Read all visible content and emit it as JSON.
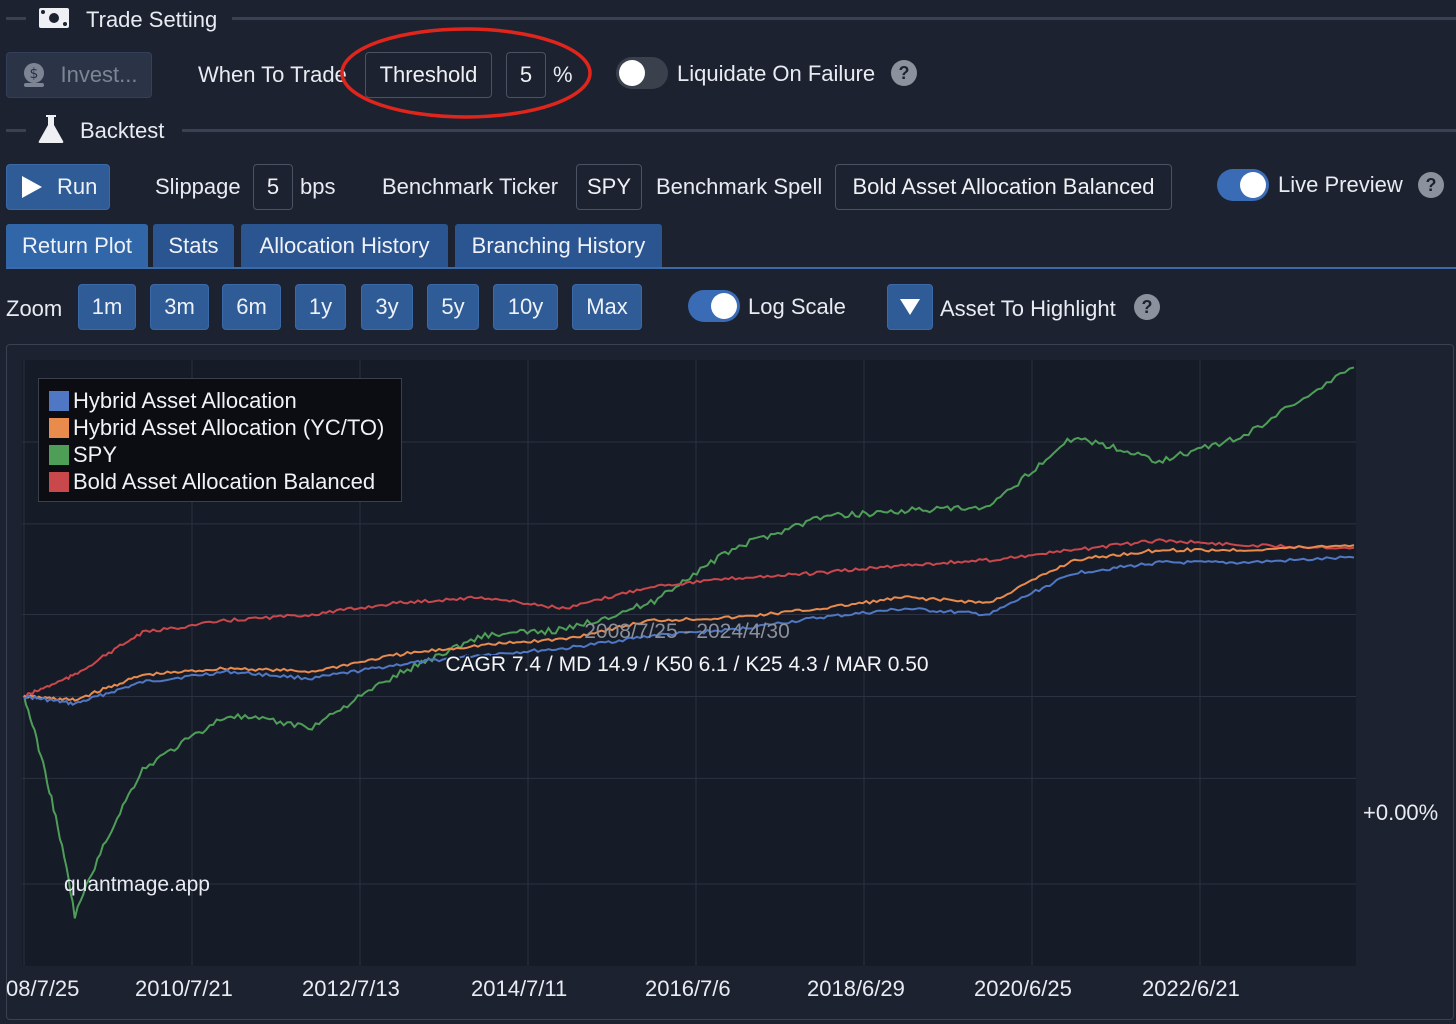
{
  "trade_setting": {
    "title": "Trade Setting",
    "invest_label": "Invest...",
    "when_to_trade_label": "When To Trade",
    "when_to_trade_value": "Threshold",
    "threshold_value": "5",
    "threshold_unit": "%",
    "liquidate_label": "Liquidate On Failure",
    "liquidate_on": false
  },
  "backtest": {
    "title": "Backtest",
    "run_label": "Run",
    "slippage_label": "Slippage",
    "slippage_value": "5",
    "slippage_unit": "bps",
    "benchmark_ticker_label": "Benchmark Ticker",
    "benchmark_ticker_value": "SPY",
    "benchmark_spell_label": "Benchmark Spell",
    "benchmark_spell_value": "Bold Asset Allocation Balanced",
    "live_preview_label": "Live Preview",
    "live_preview_on": true
  },
  "tabs": [
    "Return Plot",
    "Stats",
    "Allocation History",
    "Branching History"
  ],
  "zoom": {
    "label": "Zoom",
    "options": [
      "1m",
      "3m",
      "6m",
      "1y",
      "3y",
      "5y",
      "10y",
      "Max"
    ],
    "log_scale_label": "Log Scale",
    "log_scale_on": true,
    "asset_highlight_label": "Asset To Highlight"
  },
  "help_glyph": "?",
  "colors": {
    "background": "#1d2230",
    "accent": "#2f5c96",
    "plot_background": "#161b28",
    "annotation_circle": "#e0261c"
  },
  "chart_data": {
    "type": "line",
    "log_scale": true,
    "date_range": "2008/7/25 - 2024/4/30",
    "metrics": "CAGR 7.4 / MD 14.9 / K50 6.1 / K25 4.3 / MAR 0.50",
    "watermark": "quantmage.app",
    "reference_label": "+0.00%",
    "legend_position": "top-left",
    "grid": true,
    "x_tick_labels": [
      "08/7/25",
      "2010/7/21",
      "2012/7/13",
      "2014/7/11",
      "2016/7/6",
      "2018/6/29",
      "2020/6/25",
      "2022/6/21"
    ],
    "x": [
      2008.6,
      2009.2,
      2010.0,
      2011.0,
      2012.0,
      2013.0,
      2014.0,
      2015.0,
      2016.0,
      2017.0,
      2018.0,
      2019.0,
      2020.0,
      2021.0,
      2022.0,
      2023.0,
      2024.3
    ],
    "series": [
      {
        "name": "Hybrid Asset Allocation",
        "color": "#4f77c4",
        "values": [
          0,
          -2,
          4,
          7,
          5,
          9,
          12,
          14,
          18,
          20,
          24,
          27,
          25,
          40,
          44,
          44,
          46
        ]
      },
      {
        "name": "Hybrid Asset Allocation (YC/TO)",
        "color": "#e98b4c",
        "values": [
          0,
          -1,
          6,
          8,
          7,
          12,
          15,
          17,
          23,
          24,
          27,
          31,
          29,
          45,
          49,
          49,
          51
        ]
      },
      {
        "name": "SPY",
        "color": "#4f9e58",
        "values": [
          0,
          -45,
          -18,
          -5,
          -8,
          6,
          18,
          20,
          29,
          50,
          63,
          66,
          67,
          103,
          90,
          103,
          145
        ]
      },
      {
        "name": "Bold Asset Allocation Balanced",
        "color": "#c9484b",
        "values": [
          0,
          6,
          19,
          23,
          25,
          29,
          31,
          27,
          35,
          38,
          40,
          43,
          45,
          49,
          53,
          51,
          50
        ]
      }
    ]
  }
}
